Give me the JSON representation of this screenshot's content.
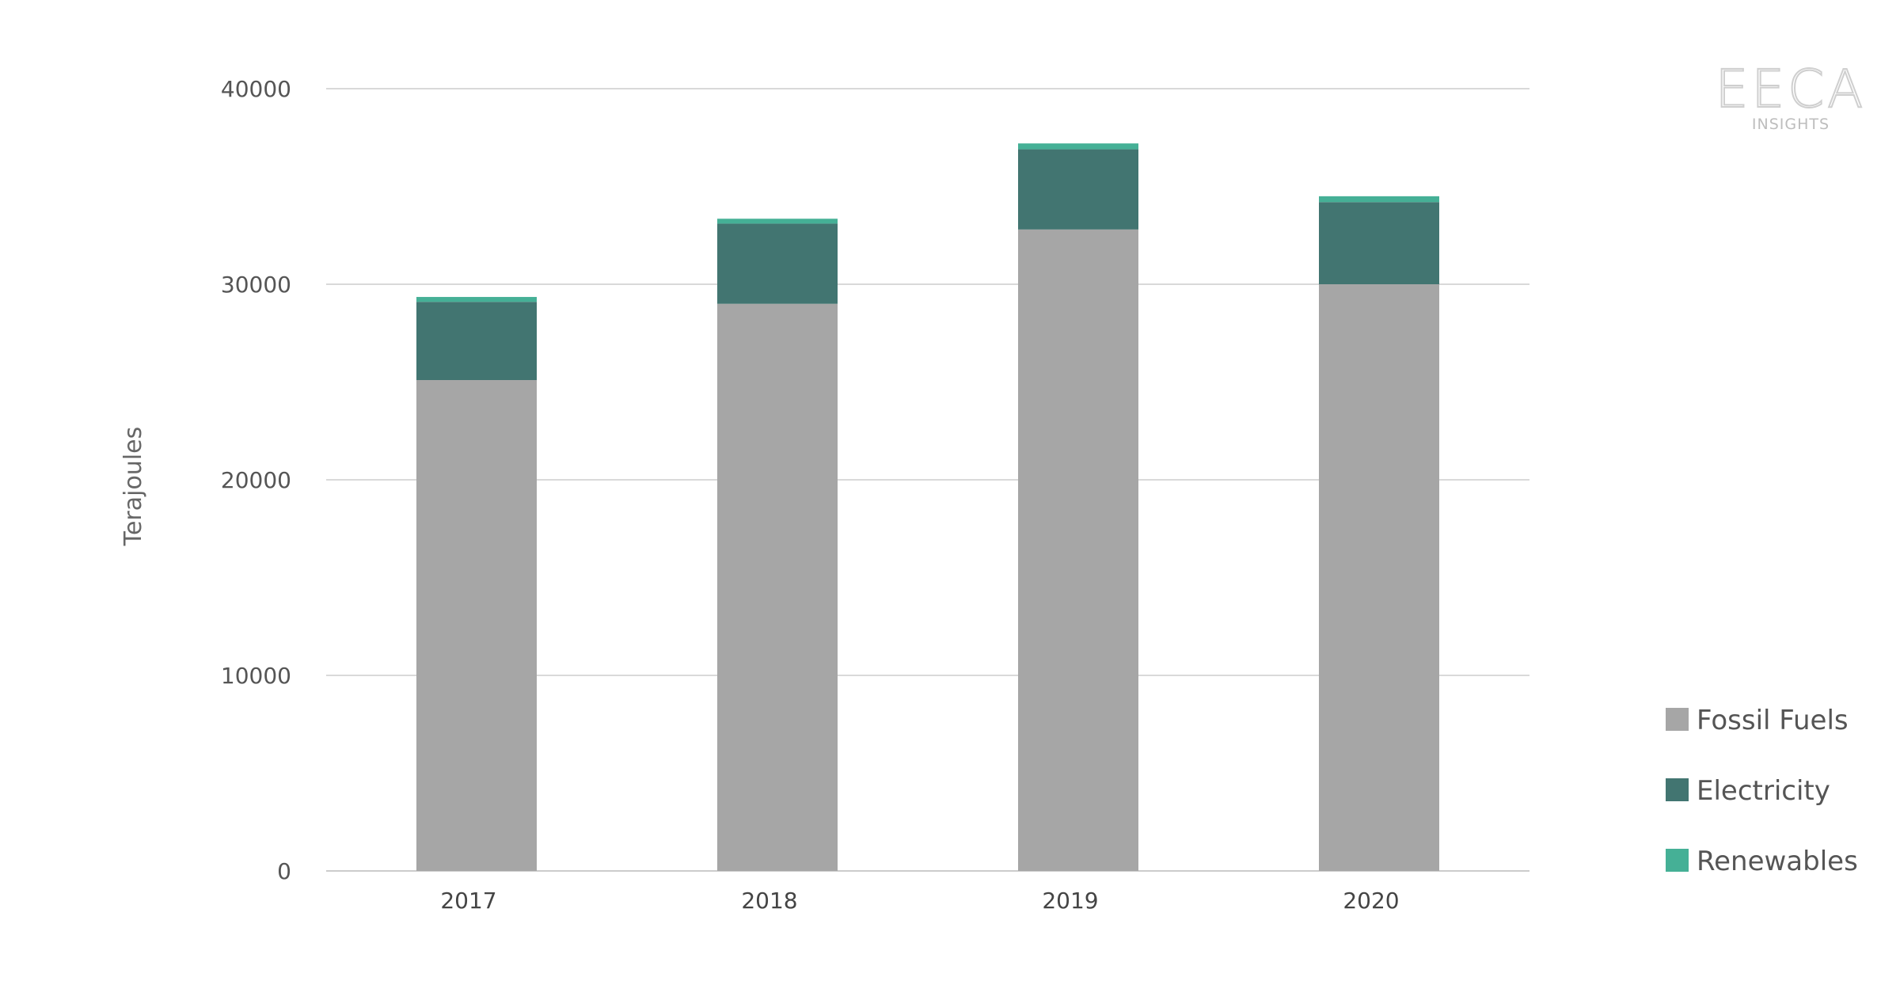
{
  "logo": {
    "name": "EECA",
    "subtitle": "INSIGHTS"
  },
  "chart_data": {
    "type": "bar",
    "stacked": true,
    "title": "",
    "xlabel": "",
    "ylabel": "Terajoules",
    "categories": [
      "2017",
      "2018",
      "2019",
      "2020"
    ],
    "series": [
      {
        "name": "Fossil Fuels",
        "color": "#a6a6a6",
        "values": [
          25100,
          29000,
          32800,
          30000
        ]
      },
      {
        "name": "Electricity",
        "color": "#427571",
        "values": [
          4000,
          4100,
          4100,
          4200
        ]
      },
      {
        "name": "Renewables",
        "color": "#45b096",
        "values": [
          250,
          250,
          300,
          300
        ]
      }
    ],
    "ylim": [
      0,
      40000
    ],
    "yticks": [
      "0",
      "10000",
      "20000",
      "30000",
      "40000"
    ],
    "grid": true,
    "gridColor": "#d9d9d9",
    "legend_position": "bottom-right"
  }
}
